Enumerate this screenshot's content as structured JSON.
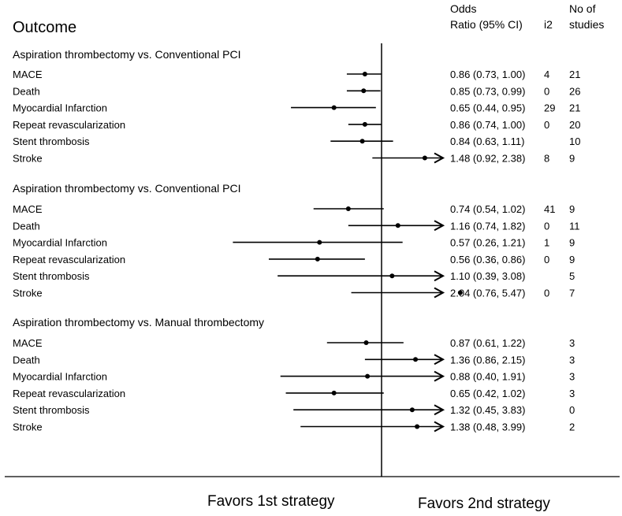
{
  "chart_data": {
    "type": "forest",
    "header": {
      "outcome": "Outcome",
      "or_line1": "Odds",
      "or_line2": "Ratio (95% CI)",
      "i2": "i2",
      "nstudies_line1": "No of",
      "nstudies_line2": "studies"
    },
    "x_scale": "log",
    "null_value": 1,
    "x_range": [
      0.2,
      3.0
    ],
    "groups": [
      {
        "title": "Aspiration thrombectomy vs. Conventional PCI",
        "rows": [
          {
            "label": "MACE",
            "or": 0.86,
            "lo": 0.73,
            "hi": 1.0,
            "ci_text": "0.86 (0.73, 1.00)",
            "i2": "4",
            "n": "21"
          },
          {
            "label": "Death",
            "or": 0.85,
            "lo": 0.73,
            "hi": 0.99,
            "ci_text": "0.85 (0.73, 0.99)",
            "i2": "0",
            "n": "26"
          },
          {
            "label": "Myocardial Infarction",
            "or": 0.65,
            "lo": 0.44,
            "hi": 0.95,
            "ci_text": "0.65 (0.44, 0.95)",
            "i2": "29",
            "n": "21"
          },
          {
            "label": "Repeat revascularization",
            "or": 0.86,
            "lo": 0.74,
            "hi": 1.0,
            "ci_text": "0.86 (0.74, 1.00)",
            "i2": "0",
            "n": "20"
          },
          {
            "label": "Stent thrombosis",
            "or": 0.84,
            "lo": 0.63,
            "hi": 1.11,
            "ci_text": "0.84 (0.63, 1.11)",
            "i2": "",
            "n": "10"
          },
          {
            "label": "Stroke",
            "or": 1.48,
            "lo": 0.92,
            "hi": 2.38,
            "ci_text": "1.48 (0.92, 2.38)",
            "i2": "8",
            "n": "9"
          }
        ]
      },
      {
        "title": "Aspiration thrombectomy vs. Conventional PCI",
        "rows": [
          {
            "label": "MACE",
            "or": 0.74,
            "lo": 0.54,
            "hi": 1.02,
            "ci_text": "0.74 (0.54, 1.02)",
            "i2": "41",
            "n": "9"
          },
          {
            "label": "Death",
            "or": 1.16,
            "lo": 0.74,
            "hi": 1.82,
            "ci_text": "1.16 (0.74, 1.82)",
            "i2": "0",
            "n": "11"
          },
          {
            "label": "Myocardial Infarction",
            "or": 0.57,
            "lo": 0.26,
            "hi": 1.21,
            "ci_text": "0.57 (0.26, 1.21)",
            "i2": "1",
            "n": "9"
          },
          {
            "label": "Repeat revascularization",
            "or": 0.56,
            "lo": 0.36,
            "hi": 0.86,
            "ci_text": "0.56 (0.36, 0.86)",
            "i2": "0",
            "n": "9"
          },
          {
            "label": "Stent thrombosis",
            "or": 1.1,
            "lo": 0.39,
            "hi": 3.08,
            "ci_text": "1.10 (0.39, 3.08)",
            "i2": "",
            "n": "5"
          },
          {
            "label": "Stroke",
            "or": 2.04,
            "lo": 0.76,
            "hi": 5.47,
            "ci_text": "2.04 (0.76, 5.47)",
            "i2": "0",
            "n": "7"
          }
        ]
      },
      {
        "title": "Aspiration thrombectomy vs. Manual thrombectomy",
        "rows": [
          {
            "label": "MACE",
            "or": 0.87,
            "lo": 0.61,
            "hi": 1.22,
            "ci_text": "0.87 (0.61, 1.22)",
            "i2": "",
            "n": "3"
          },
          {
            "label": "Death",
            "or": 1.36,
            "lo": 0.86,
            "hi": 2.15,
            "ci_text": "1.36 (0.86, 2.15)",
            "i2": "",
            "n": "3"
          },
          {
            "label": "Myocardial Infarction",
            "or": 0.88,
            "lo": 0.4,
            "hi": 1.91,
            "ci_text": "0.88 (0.40, 1.91)",
            "i2": "",
            "n": "3"
          },
          {
            "label": "Repeat revascularization",
            "or": 0.65,
            "lo": 0.42,
            "hi": 1.02,
            "ci_text": "0.65 (0.42, 1.02)",
            "i2": "",
            "n": "3"
          },
          {
            "label": "Stent thrombosis",
            "or": 1.32,
            "lo": 0.45,
            "hi": 3.83,
            "ci_text": "1.32 (0.45, 3.83)",
            "i2": "",
            "n": "0"
          },
          {
            "label": "Stroke",
            "or": 1.38,
            "lo": 0.48,
            "hi": 3.99,
            "ci_text": "1.38 (0.48, 3.99)",
            "i2": "",
            "n": "2"
          }
        ]
      }
    ],
    "footer": {
      "left": "Favors 1st strategy",
      "right": "Favors 2nd strategy"
    }
  }
}
